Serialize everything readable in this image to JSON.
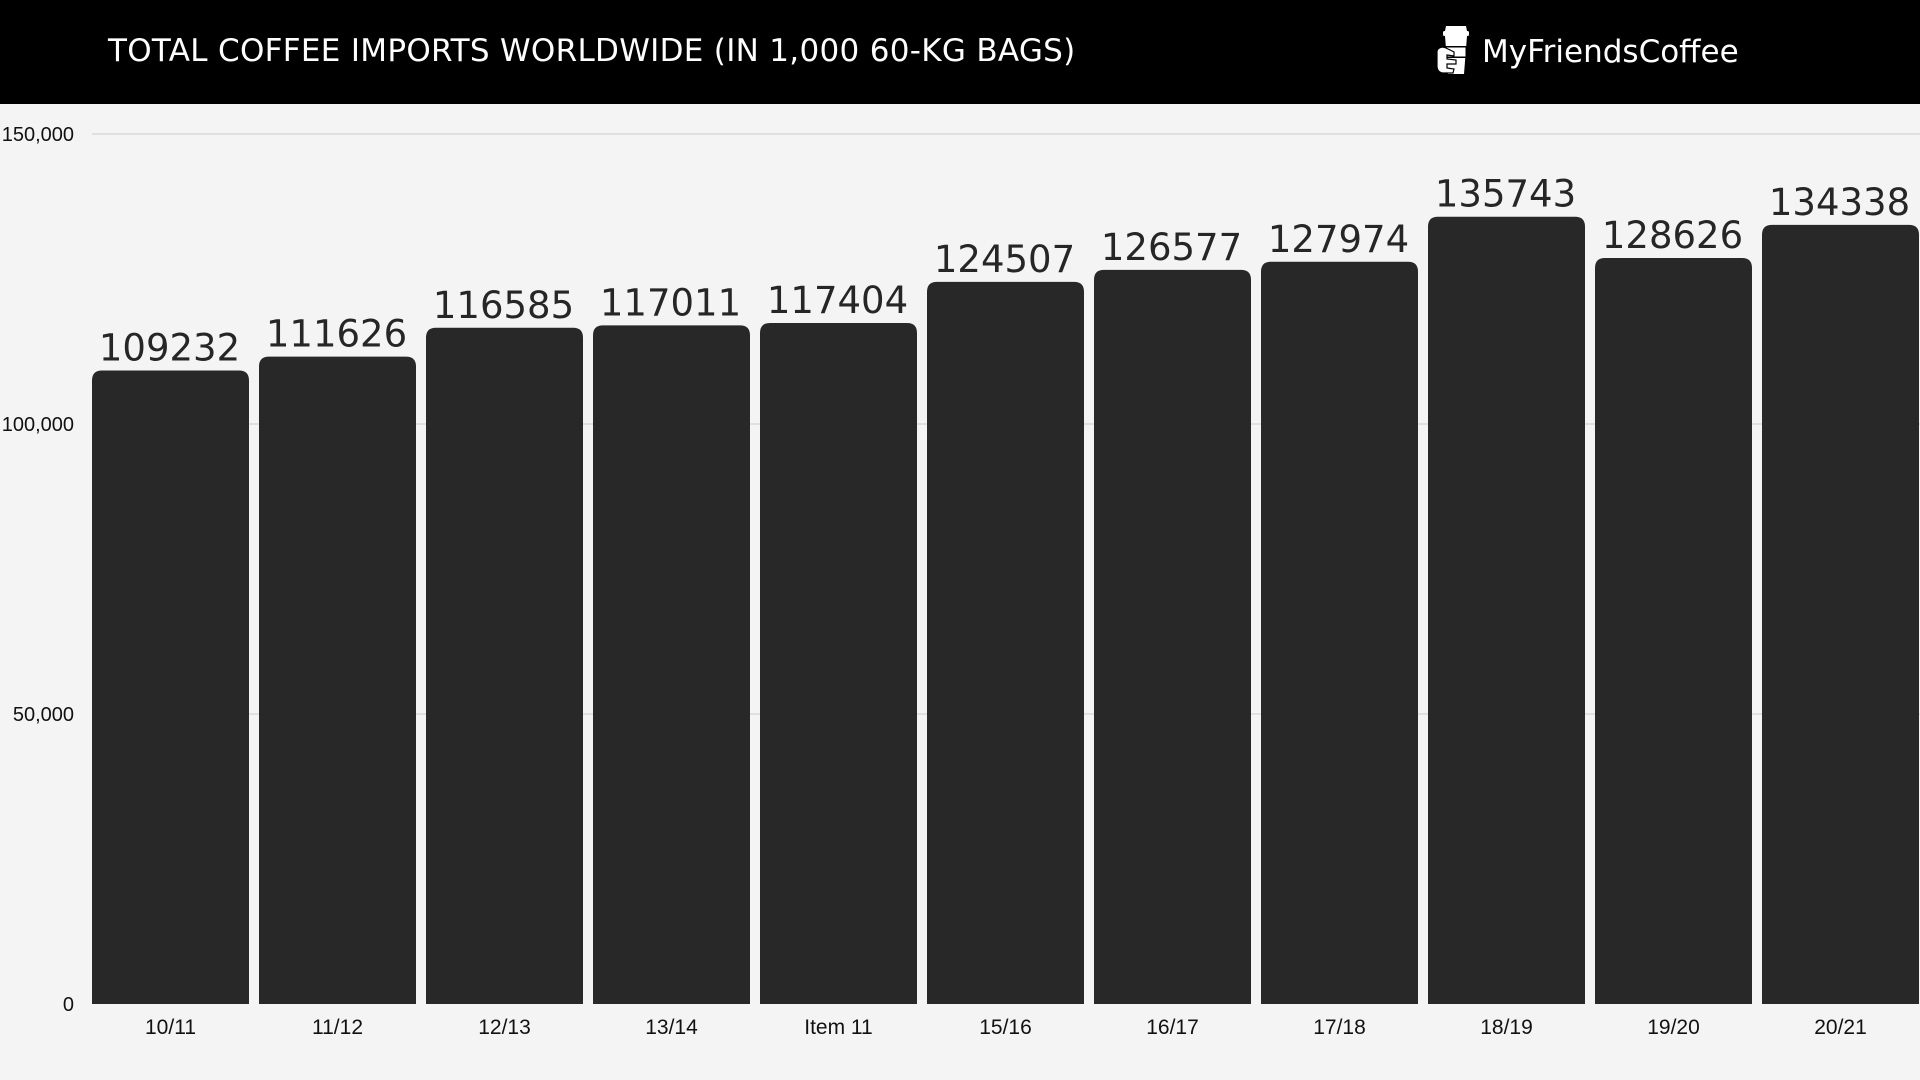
{
  "header": {
    "title": "TOTAL COFFEE IMPORTS WORLDWIDE (IN 1,000 60-KG BAGS)",
    "brand_name": "MyFriendsCoffee",
    "brand_icon": "coffee-cup-in-hand-icon"
  },
  "colors": {
    "header_bg": "#000000",
    "plot_bg": "#f4f4f4",
    "bar": "#282828",
    "gridline": "#d9d9d9",
    "text": "#111111"
  },
  "chart_data": {
    "type": "bar",
    "title": "TOTAL COFFEE IMPORTS WORLDWIDE (IN 1,000 60-KG BAGS)",
    "xlabel": "",
    "ylabel": "",
    "categories": [
      "10/11",
      "11/12",
      "12/13",
      "13/14",
      "Item 11",
      "15/16",
      "16/17",
      "17/18",
      "18/19",
      "19/20",
      "20/21"
    ],
    "values": [
      109232,
      111626,
      116585,
      117011,
      117404,
      124507,
      126577,
      127974,
      135743,
      128626,
      134338
    ],
    "data_labels": [
      "109232",
      "111626",
      "116585",
      "117011",
      "117404",
      "124507",
      "126577",
      "127974",
      "135743",
      "128626",
      "134338"
    ],
    "ylim": [
      0,
      150000
    ],
    "yticks": [
      0,
      50000,
      100000,
      150000
    ],
    "ytick_labels": [
      "0",
      "50,000",
      "100,000",
      "150,000"
    ],
    "grid": true,
    "legend": "none"
  }
}
